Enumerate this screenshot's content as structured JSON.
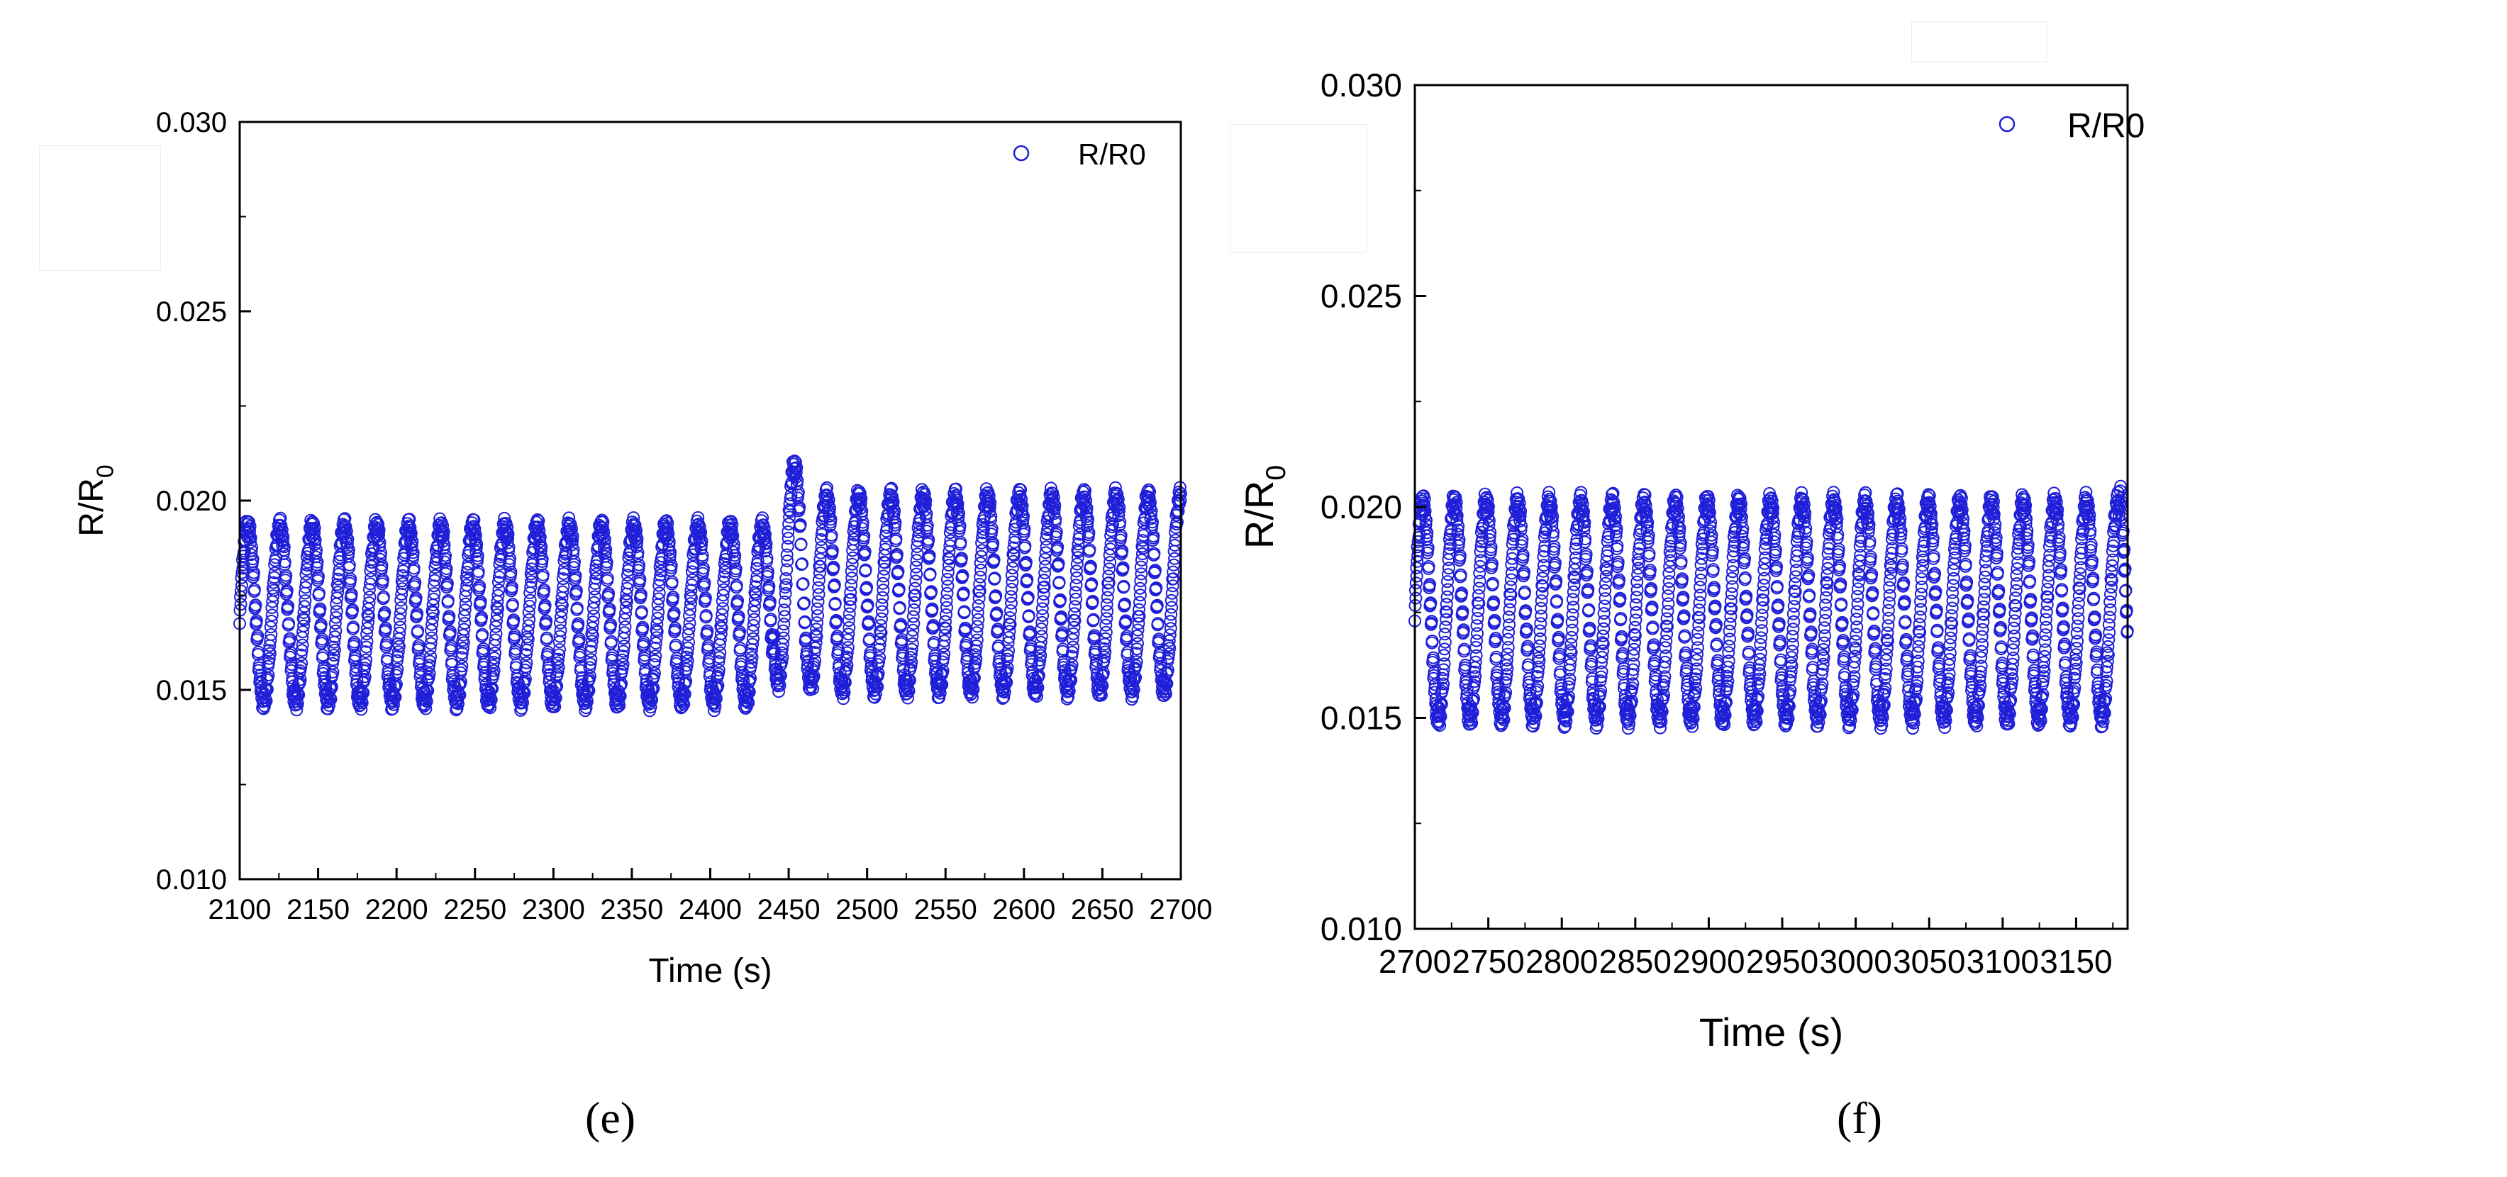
{
  "figure": {
    "panels": [
      {
        "caption": "(e)"
      },
      {
        "caption": "(f)"
      }
    ]
  },
  "chart_data": [
    {
      "type": "scatter",
      "title": "",
      "xlabel": "Time (s)",
      "ylabel": "R/R",
      "ylabel_subscript": "0",
      "xlim": [
        2100,
        2700
      ],
      "ylim": [
        0.01,
        0.03
      ],
      "xticks": [
        "2100",
        "2150",
        "2200",
        "2250",
        "2300",
        "2350",
        "2400",
        "2450",
        "2500",
        "2550",
        "2600",
        "2650",
        "2700"
      ],
      "yticks": [
        "0.010",
        "0.015",
        "0.020",
        "0.025",
        "0.030"
      ],
      "grid": false,
      "legend_position": "top-right",
      "marker": "open-circle",
      "color": "#1f1fd8",
      "series": [
        {
          "name": "R/R0",
          "pattern": "oscillation",
          "x_start": 2100,
          "x_end": 2700,
          "period_s": 20.5,
          "segments": [
            {
              "x_from": 2100,
              "x_to": 2440,
              "min": 0.0147,
              "max": 0.0193
            },
            {
              "x_from": 2440,
              "x_to": 2465,
              "min": 0.0152,
              "max": 0.0209
            },
            {
              "x_from": 2465,
              "x_to": 2700,
              "min": 0.015,
              "max": 0.0201
            }
          ]
        }
      ]
    },
    {
      "type": "scatter",
      "title": "",
      "xlabel": "Time (s)",
      "ylabel": "R/R",
      "ylabel_subscript": "0",
      "xlim": [
        2700,
        3185
      ],
      "ylim": [
        0.01,
        0.03
      ],
      "xticks": [
        "2700",
        "2750",
        "2800",
        "2850",
        "2900",
        "2950",
        "3000",
        "3050",
        "3100",
        "3150"
      ],
      "yticks": [
        "0.010",
        "0.015",
        "0.020",
        "0.025",
        "0.030"
      ],
      "grid": false,
      "legend_position": "top-right",
      "marker": "open-circle",
      "color": "#1f1fd8",
      "series": [
        {
          "name": "R/R0",
          "pattern": "oscillation",
          "x_start": 2700,
          "x_end": 3185,
          "period_s": 21.5,
          "segments": [
            {
              "x_from": 2700,
              "x_to": 3180,
              "min": 0.015,
              "max": 0.0201
            },
            {
              "x_from": 3180,
              "x_to": 3185,
              "min": 0.0152,
              "max": 0.0207
            }
          ]
        }
      ]
    }
  ]
}
